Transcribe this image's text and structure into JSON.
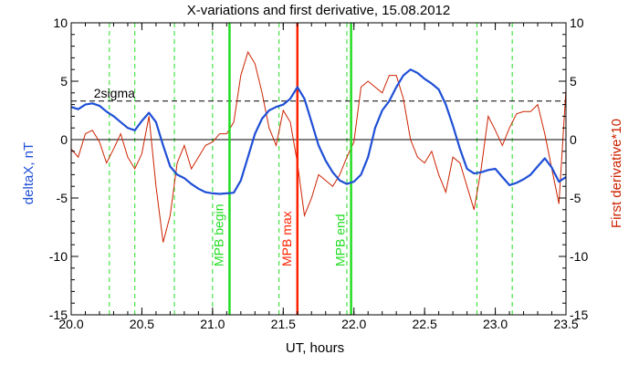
{
  "chart_data": {
    "type": "line",
    "title": "X-variations and first derivative, 15.08.2012",
    "xlabel": "UT, hours",
    "ylabel_left": "deltaX, nT",
    "ylabel_right": "First derivative*10",
    "xlim": [
      20.0,
      23.5
    ],
    "ylim": [
      -15,
      10
    ],
    "y2lim": [
      -15,
      10
    ],
    "x_ticks": [
      "20.0",
      "20.5",
      "21.0",
      "21.5",
      "22.0",
      "22.5",
      "23.0",
      "23.5"
    ],
    "y_ticks": [
      "10",
      "5",
      "0",
      "-5",
      "-10",
      "-15"
    ],
    "y2_ticks": [
      "10",
      "5",
      "0",
      "-5",
      "-10",
      "-15"
    ],
    "colors": {
      "deltaX": "#1f4fd6",
      "derivative": "#cc2200",
      "green_lines": "#22dd22",
      "mpb_max": "#ff2200",
      "sigma": "#000000"
    },
    "sigma_level": 3.3,
    "sigma_label": "2sigma",
    "zero_line": 0,
    "green_dashed_x": [
      20.27,
      20.45,
      20.73,
      21.0,
      21.47,
      21.95,
      22.87,
      23.12
    ],
    "events": [
      {
        "label": "MPB begin",
        "x": 21.12,
        "color": "#22dd22"
      },
      {
        "label": "MPB max",
        "x": 21.6,
        "color": "#ff2200"
      },
      {
        "label": "MPB end",
        "x": 21.98,
        "color": "#22dd22"
      }
    ],
    "series": [
      {
        "name": "deltaX",
        "axis": "left",
        "x": [
          20.0,
          20.05,
          20.1,
          20.15,
          20.2,
          20.25,
          20.3,
          20.35,
          20.4,
          20.45,
          20.5,
          20.55,
          20.6,
          20.65,
          20.7,
          20.75,
          20.8,
          20.85,
          20.9,
          20.95,
          21.0,
          21.05,
          21.1,
          21.15,
          21.2,
          21.25,
          21.3,
          21.35,
          21.4,
          21.45,
          21.5,
          21.55,
          21.6,
          21.65,
          21.7,
          21.75,
          21.8,
          21.85,
          21.9,
          21.95,
          22.0,
          22.05,
          22.1,
          22.15,
          22.2,
          22.25,
          22.3,
          22.35,
          22.4,
          22.45,
          22.5,
          22.55,
          22.6,
          22.65,
          22.7,
          22.75,
          22.8,
          22.85,
          22.9,
          22.95,
          23.0,
          23.05,
          23.1,
          23.15,
          23.2,
          23.25,
          23.3,
          23.35,
          23.4,
          23.45,
          23.5
        ],
        "values": [
          2.8,
          2.6,
          3.0,
          3.1,
          2.9,
          2.4,
          2.0,
          1.5,
          1.0,
          0.8,
          1.6,
          2.3,
          1.5,
          -0.5,
          -2.3,
          -3.0,
          -3.3,
          -3.8,
          -4.2,
          -4.5,
          -4.6,
          -4.65,
          -4.6,
          -4.55,
          -3.5,
          -1.5,
          0.5,
          1.8,
          2.5,
          2.8,
          3.0,
          3.5,
          4.5,
          3.5,
          1.5,
          -0.5,
          -1.8,
          -2.8,
          -3.5,
          -3.8,
          -3.6,
          -3.0,
          -1.5,
          1.0,
          2.5,
          3.3,
          4.5,
          5.5,
          6.0,
          5.7,
          5.2,
          4.8,
          4.3,
          3.0,
          1.2,
          -0.8,
          -2.5,
          -2.9,
          -2.8,
          -2.6,
          -2.5,
          -3.2,
          -3.9,
          -3.7,
          -3.4,
          -3.0,
          -2.3,
          -1.6,
          -2.4,
          -3.6,
          -3.2
        ]
      },
      {
        "name": "First derivative*10",
        "axis": "right",
        "x": [
          20.0,
          20.05,
          20.1,
          20.15,
          20.2,
          20.25,
          20.3,
          20.35,
          20.4,
          20.45,
          20.5,
          20.55,
          20.6,
          20.65,
          20.7,
          20.75,
          20.8,
          20.85,
          20.9,
          20.95,
          21.0,
          21.05,
          21.1,
          21.15,
          21.2,
          21.25,
          21.3,
          21.35,
          21.4,
          21.45,
          21.5,
          21.55,
          21.6,
          21.65,
          21.7,
          21.75,
          21.8,
          21.85,
          21.9,
          21.95,
          22.0,
          22.05,
          22.1,
          22.15,
          22.2,
          22.25,
          22.3,
          22.35,
          22.4,
          22.45,
          22.5,
          22.55,
          22.6,
          22.65,
          22.7,
          22.75,
          22.8,
          22.85,
          22.9,
          22.95,
          23.0,
          23.05,
          23.1,
          23.15,
          23.2,
          23.25,
          23.3,
          23.35,
          23.4,
          23.45,
          23.5
        ],
        "values": [
          -0.8,
          -1.5,
          0.5,
          0.8,
          -0.2,
          -2.0,
          -0.8,
          0.5,
          -1.5,
          -2.5,
          -1.2,
          2.0,
          -4.0,
          -8.8,
          -6.5,
          -2.0,
          -0.5,
          -2.5,
          -1.5,
          -0.5,
          -0.2,
          0.5,
          0.5,
          1.5,
          5.5,
          7.5,
          6.5,
          4.0,
          1.0,
          -0.5,
          2.5,
          1.5,
          -2.0,
          -6.5,
          -5.0,
          -3.0,
          -3.5,
          -4.0,
          -3.0,
          -1.5,
          -0.2,
          4.5,
          5.0,
          4.5,
          4.0,
          5.5,
          5.5,
          3.5,
          0.0,
          -1.5,
          -2.0,
          -1.0,
          -3.0,
          -4.5,
          -1.5,
          -2.0,
          -4.0,
          -6.0,
          -2.5,
          2.0,
          0.8,
          -0.5,
          1.0,
          2.2,
          2.4,
          2.4,
          3.0,
          0.5,
          -2.5,
          -5.5,
          4.3
        ]
      }
    ]
  }
}
